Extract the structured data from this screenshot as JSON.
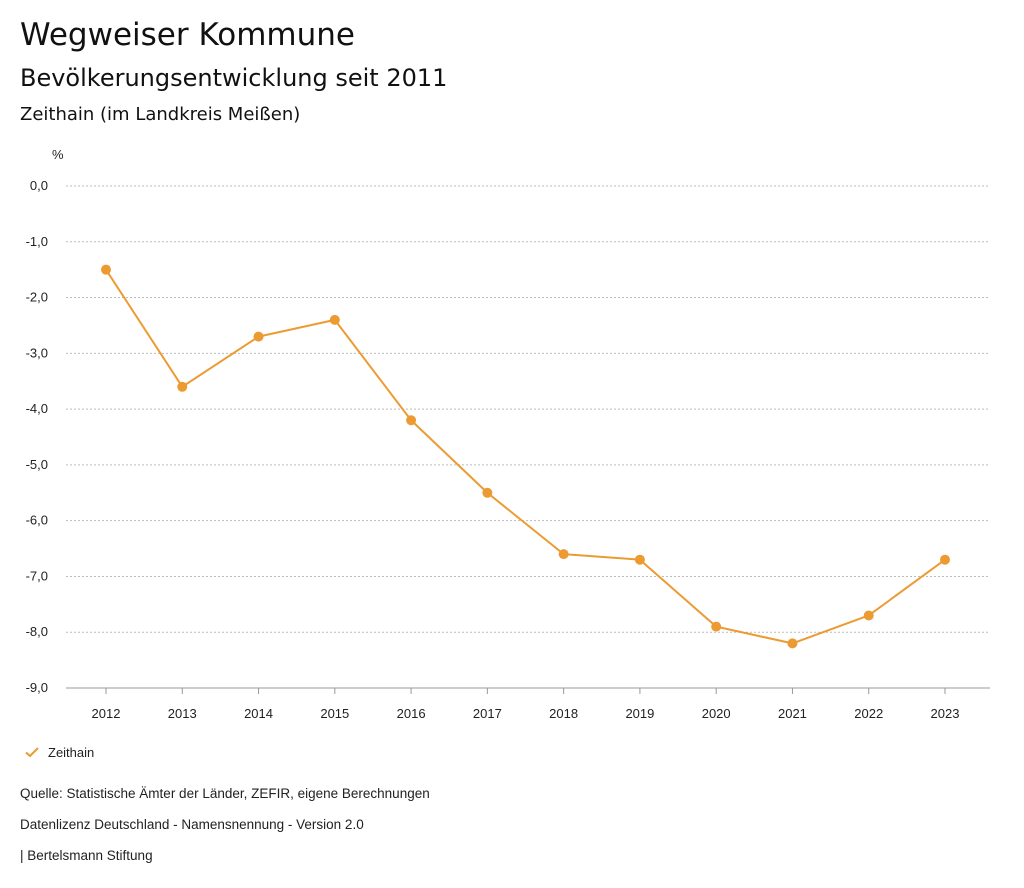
{
  "header": {
    "title": "Wegweiser Kommune",
    "subtitle": "Bevölkerungsentwicklung seit 2011",
    "region": "Zeithain (im Landkreis Meißen)"
  },
  "chart_data": {
    "type": "line",
    "title": "Bevölkerungsentwicklung seit 2011",
    "ylabel": "%",
    "xlabel": "",
    "ylim": [
      -9.0,
      0.0
    ],
    "yticks": [
      "0,0",
      "-1,0",
      "-2,0",
      "-3,0",
      "-4,0",
      "-5,0",
      "-6,0",
      "-7,0",
      "-8,0",
      "-9,0"
    ],
    "ytick_values": [
      0,
      -1,
      -2,
      -3,
      -4,
      -5,
      -6,
      -7,
      -8,
      -9
    ],
    "categories": [
      "2012",
      "2013",
      "2014",
      "2015",
      "2016",
      "2017",
      "2018",
      "2019",
      "2020",
      "2021",
      "2022",
      "2023"
    ],
    "series": [
      {
        "name": "Zeithain",
        "color": "#EC9B33",
        "values": [
          -1.5,
          -3.6,
          -2.7,
          -2.4,
          -4.2,
          -5.5,
          -6.6,
          -6.7,
          -7.9,
          -8.2,
          -7.7,
          -6.7
        ]
      }
    ],
    "grid": true,
    "legend": "bottom-left"
  },
  "legend": {
    "label": "Zeithain"
  },
  "footer": {
    "source": "Quelle: Statistische Ämter der Länder, ZEFIR, eigene Berechnungen",
    "license": "Datenlizenz Deutschland - Namensnennung - Version 2.0",
    "publisher": "| Bertelsmann Stiftung"
  }
}
